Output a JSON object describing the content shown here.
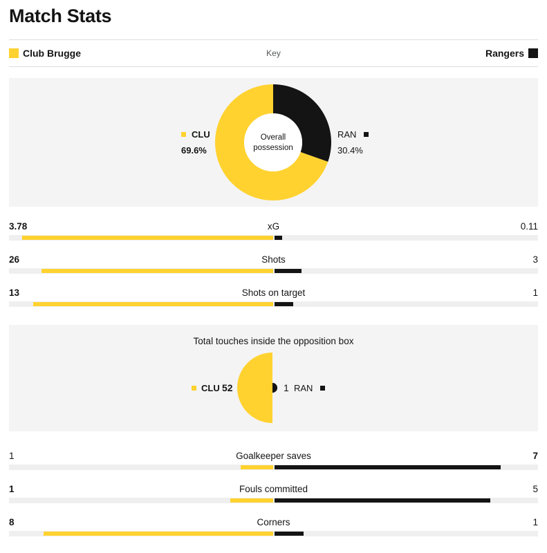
{
  "page": {
    "title": "Match Stats"
  },
  "key": {
    "home_team": "Club Brugge",
    "away_team": "Rangers",
    "label": "Key",
    "home_color": "#ffd230",
    "away_color": "#141414"
  },
  "possession": {
    "center_line1": "Overall",
    "center_line2": "possession",
    "home_code": "CLU",
    "away_code": "RAN",
    "home_pct_label": "69.6%",
    "away_pct_label": "30.4%",
    "home": 69.6,
    "away": 30.4
  },
  "stats_top": [
    {
      "label": "xG",
      "home_label": "3.78",
      "away_label": "0.11",
      "home": 3.78,
      "away": 0.11,
      "home_bold": true
    },
    {
      "label": "Shots",
      "home_label": "26",
      "away_label": "3",
      "home": 26,
      "away": 3,
      "home_bold": true
    },
    {
      "label": "Shots on target",
      "home_label": "13",
      "away_label": "1",
      "home": 13,
      "away": 1,
      "home_bold": true
    }
  ],
  "touches": {
    "title": "Total touches inside the opposition box",
    "home_code": "CLU",
    "away_code": "RAN",
    "home_label": "52",
    "away_label": "1",
    "home": 52,
    "away": 1
  },
  "stats_bottom": [
    {
      "label": "Goalkeeper saves",
      "home_label": "1",
      "away_label": "7",
      "home": 1,
      "away": 7,
      "away_bold": true
    },
    {
      "label": "Fouls committed",
      "home_label": "1",
      "away_label": "5",
      "home": 1,
      "away": 5,
      "home_bold": true
    },
    {
      "label": "Corners",
      "home_label": "8",
      "away_label": "1",
      "home": 8,
      "away": 1,
      "home_bold": true
    }
  ],
  "chart_data": {
    "type": "bar",
    "teams": [
      "Club Brugge",
      "Rangers"
    ],
    "possession": {
      "type": "pie",
      "labels": [
        "CLU",
        "RAN"
      ],
      "values": [
        69.6,
        30.4
      ]
    },
    "categories": [
      "xG",
      "Shots",
      "Shots on target",
      "Total touches inside the opposition box",
      "Goalkeeper saves",
      "Fouls committed",
      "Corners"
    ],
    "series": [
      {
        "name": "Club Brugge",
        "values": [
          3.78,
          26,
          13,
          52,
          1,
          1,
          8
        ]
      },
      {
        "name": "Rangers",
        "values": [
          0.11,
          3,
          1,
          1,
          7,
          5,
          1
        ]
      }
    ]
  }
}
